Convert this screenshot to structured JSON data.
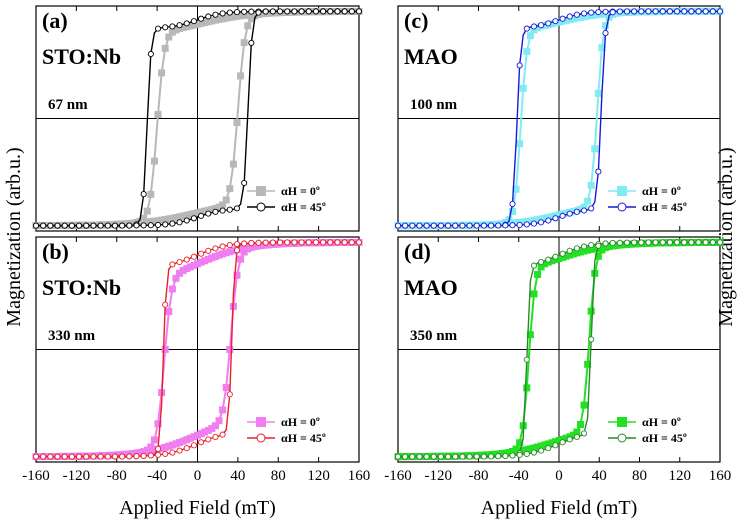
{
  "chart_data": {
    "type": "line",
    "ylabel_left": "Magnetization (arb.u.)",
    "ylabel_right": "Magnetization (arb.u.)",
    "x_ticks": [
      "-160",
      "-120",
      "-80",
      "-40",
      "0",
      "40",
      "80",
      "120",
      "160"
    ],
    "xlim": [
      -160,
      160
    ],
    "ylim": [
      -1.05,
      1.05
    ],
    "x_tick_values": [
      -160,
      -120,
      -80,
      -40,
      0,
      40,
      80,
      120,
      160
    ],
    "panels": [
      {
        "id": "a",
        "letter": "(a)",
        "substrate": "STO:Nb",
        "thickness": "67 nm",
        "xlabel": "",
        "legend": [
          "αH = 0º",
          "αH = 45º"
        ],
        "series": [
          {
            "name": "αH = 0º",
            "marker": "square",
            "color": "#b8b8b8",
            "coercive_field": 40,
            "width": 7,
            "tail": 0.12,
            "tail_width": 55
          },
          {
            "name": "αH = 45º",
            "marker": "circle",
            "color": "#000000",
            "coercive_field": 50,
            "width": 4,
            "tail": 0.08,
            "tail_width": 25
          }
        ]
      },
      {
        "id": "b",
        "letter": "(b)",
        "substrate": "STO:Nb",
        "thickness": "330 nm",
        "xlabel": "Applied Field (mT)",
        "legend": [
          "αH = 0º",
          "αH = 45º"
        ],
        "series": [
          {
            "name": "αH = 0º",
            "marker": "square",
            "color": "#f07ef0",
            "coercive_field": 33,
            "width": 7,
            "tail": 0.2,
            "tail_width": 50
          },
          {
            "name": "αH = 45º",
            "marker": "circle",
            "color": "#e8202a",
            "coercive_field": 34,
            "width": 3,
            "tail": 0.12,
            "tail_width": 30
          }
        ]
      },
      {
        "id": "c",
        "letter": "(c)",
        "substrate": "MAO",
        "thickness": "100 nm",
        "xlabel": "",
        "legend": [
          "αH = 0º",
          "αH = 45º"
        ],
        "series": [
          {
            "name": "αH = 0º",
            "marker": "square",
            "color": "#80ecf2",
            "coercive_field": 38,
            "width": 6,
            "tail": 0.1,
            "tail_width": 45
          },
          {
            "name": "αH = 45º",
            "marker": "circle",
            "color": "#1a1ad8",
            "coercive_field": 42,
            "width": 4,
            "tail": 0.08,
            "tail_width": 25
          }
        ]
      },
      {
        "id": "d",
        "letter": "(d)",
        "substrate": "MAO",
        "thickness": "350 nm",
        "xlabel": "Applied Field (mT)",
        "legend": [
          "αH = 0º",
          "αH = 45º"
        ],
        "series": [
          {
            "name": "αH = 0º",
            "marker": "square",
            "color": "#22e022",
            "coercive_field": 30,
            "width": 6,
            "tail": 0.15,
            "tail_width": 50
          },
          {
            "name": "αH = 45º",
            "marker": "circle",
            "color": "#2a8a2a",
            "coercive_field": 32,
            "width": 3,
            "tail": 0.12,
            "tail_width": 30
          }
        ]
      }
    ]
  }
}
